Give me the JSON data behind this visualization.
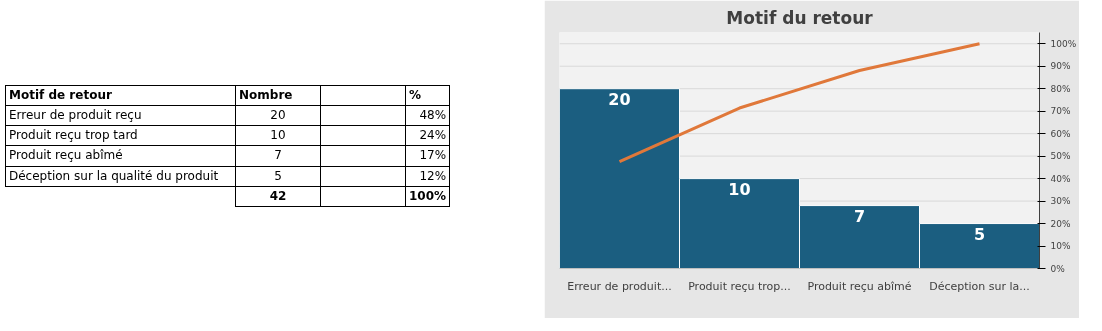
{
  "chart_data": {
    "type": "bar",
    "title": "Motif du retour",
    "categories": [
      "Erreur de produit...",
      "Produit reçu trop...",
      "Produit reçu abîmé",
      "Déception sur la..."
    ],
    "series": [
      {
        "type": "bar",
        "color": "#1b5e80",
        "values": [
          20,
          10,
          7,
          5
        ],
        "value_labels": [
          "20",
          "10",
          "7",
          "5"
        ]
      },
      {
        "type": "line",
        "axis": "y2",
        "color": "#e0783a",
        "values": [
          47.6,
          71.4,
          88.1,
          100
        ]
      }
    ],
    "ylim": [
      0,
      26.25
    ],
    "y2lim": [
      0,
      105
    ],
    "y2ticks": [
      {
        "value": 0,
        "label": "0%"
      },
      {
        "value": 10,
        "label": "10%"
      },
      {
        "value": 20,
        "label": "20%"
      },
      {
        "value": 30,
        "label": "30%"
      },
      {
        "value": 40,
        "label": "40%"
      },
      {
        "value": 50,
        "label": "50%"
      },
      {
        "value": 60,
        "label": "60%"
      },
      {
        "value": 70,
        "label": "70%"
      },
      {
        "value": 80,
        "label": "80%"
      },
      {
        "value": 90,
        "label": "90%"
      },
      {
        "value": 100,
        "label": "100%"
      }
    ],
    "annotations": [
      "Motif de retour",
      "Nombre",
      "%",
      "Erreur de produit reçu",
      "20",
      "48%",
      "Produit reçu trop tard",
      "10",
      "24%",
      "Produit reçu abîmé",
      "7",
      "17%",
      "Déception sur la qualité du produit",
      "5",
      "12%",
      "42",
      "100%"
    ],
    "grid": "y",
    "marker": "none"
  }
}
